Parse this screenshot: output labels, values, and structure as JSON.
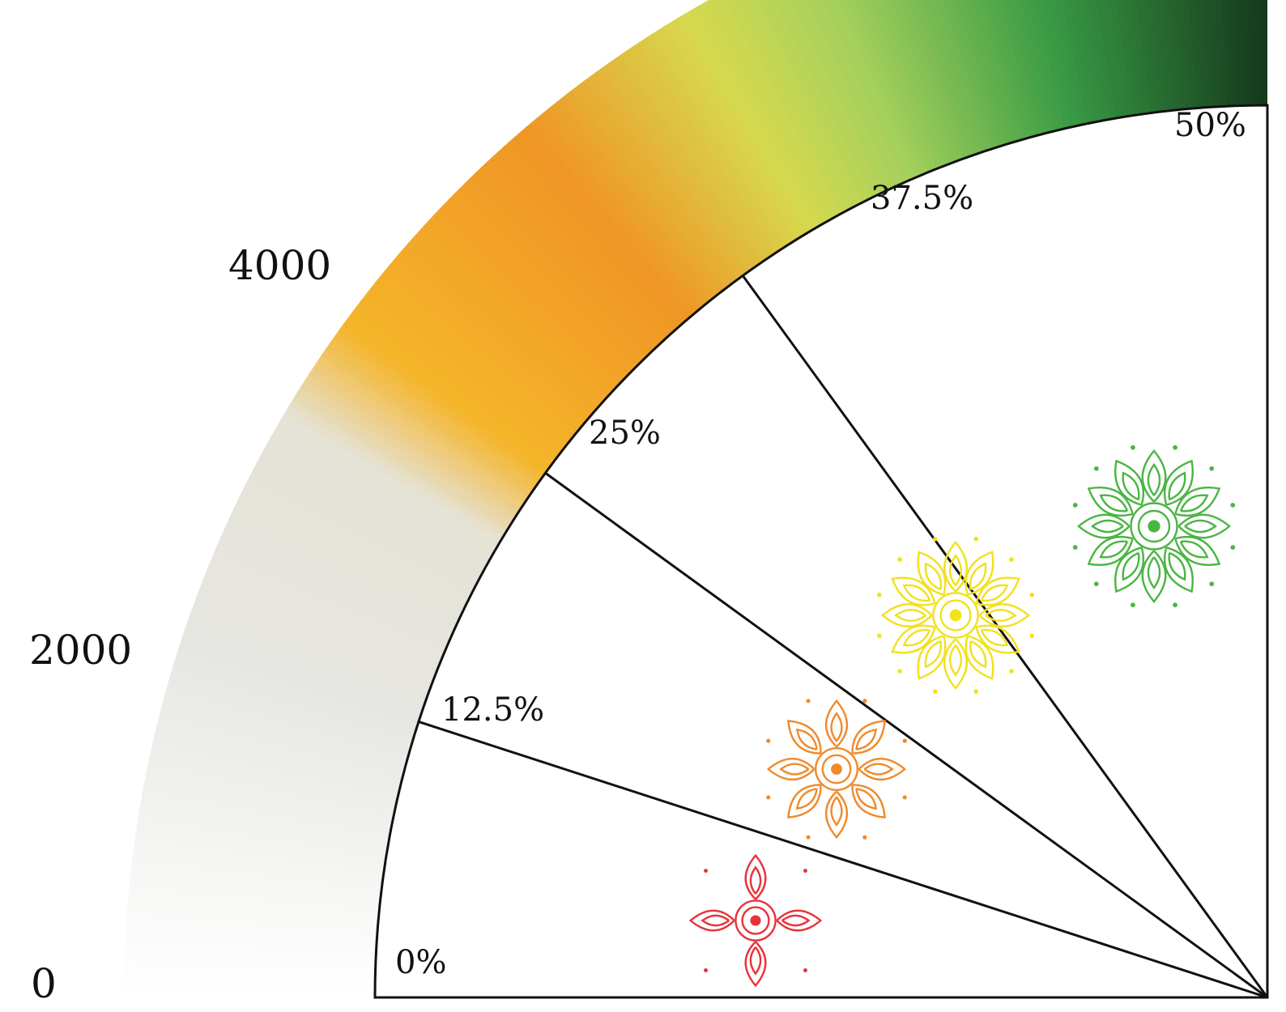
{
  "chart_data": {
    "type": "gauge",
    "scale_labels": [
      "0",
      "2000",
      "4000"
    ],
    "sector_labels": [
      "0%",
      "12.5%",
      "25%",
      "37.5%",
      "50%"
    ],
    "band_gradient_stops": [
      {
        "offset": 0.0,
        "color": "#ffffff"
      },
      {
        "offset": 0.2,
        "color": "#e6e6e2"
      },
      {
        "offset": 0.34,
        "color": "#e5e2d6"
      },
      {
        "offset": 0.4,
        "color": "#f5b52a"
      },
      {
        "offset": 0.55,
        "color": "#ef9625"
      },
      {
        "offset": 0.66,
        "color": "#d6d94e"
      },
      {
        "offset": 0.74,
        "color": "#a5d05c"
      },
      {
        "offset": 0.86,
        "color": "#399b45"
      },
      {
        "offset": 1.0,
        "color": "#153a1c"
      }
    ],
    "mandala_colors": [
      "#e8323a",
      "#f08a2a",
      "#f2e11c",
      "#4bb543"
    ]
  }
}
